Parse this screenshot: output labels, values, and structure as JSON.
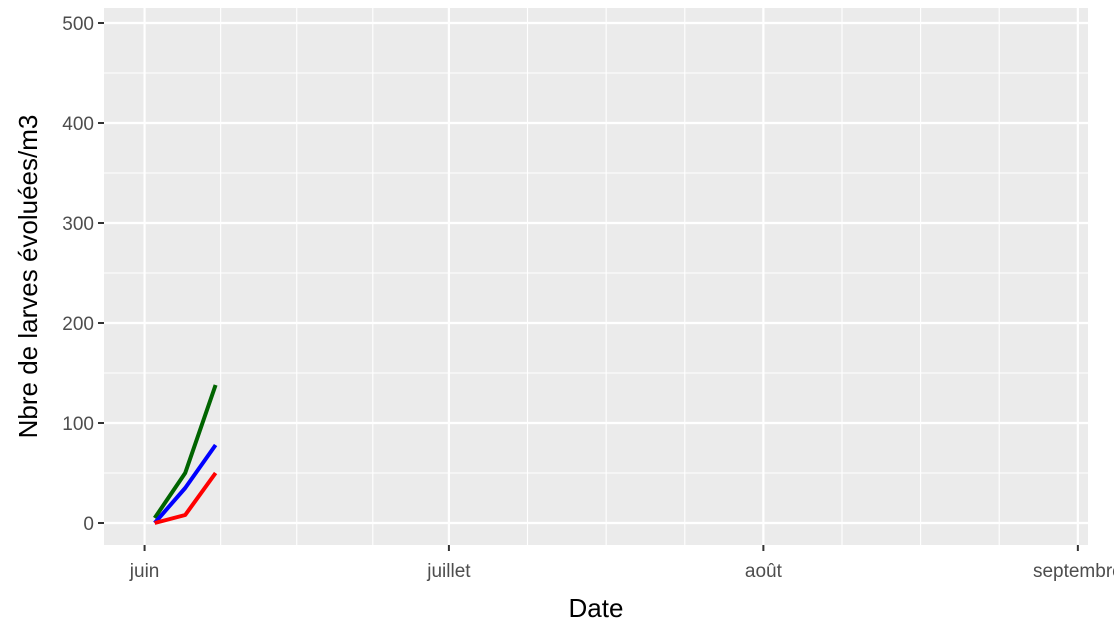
{
  "chart_data": {
    "type": "line",
    "xlabel": "Date",
    "ylabel": "Nbre de larves évoluées/m3",
    "x_axis": {
      "type": "date",
      "range": [
        "2023-05-28",
        "2023-09-02"
      ],
      "ticks": [
        {
          "date": "2023-06-01",
          "label": "juin"
        },
        {
          "date": "2023-07-01",
          "label": "juillet"
        },
        {
          "date": "2023-08-01",
          "label": "août"
        },
        {
          "date": "2023-09-01",
          "label": "septembre"
        }
      ]
    },
    "y_axis": {
      "range": [
        -22,
        515
      ],
      "ticks": [
        0,
        100,
        200,
        300,
        400,
        500
      ]
    },
    "grid": true,
    "legend": "none",
    "series": [
      {
        "color": "#006400",
        "points": [
          {
            "x": "2023-06-02",
            "y": 5
          },
          {
            "x": "2023-06-05",
            "y": 50
          },
          {
            "x": "2023-06-08",
            "y": 138
          }
        ]
      },
      {
        "color": "#0000ff",
        "points": [
          {
            "x": "2023-06-02",
            "y": 0
          },
          {
            "x": "2023-06-05",
            "y": 35
          },
          {
            "x": "2023-06-08",
            "y": 78
          }
        ]
      },
      {
        "color": "#ff0000",
        "points": [
          {
            "x": "2023-06-02",
            "y": 0
          },
          {
            "x": "2023-06-05",
            "y": 8
          },
          {
            "x": "2023-06-08",
            "y": 50
          }
        ]
      }
    ],
    "panel_background": "#ebebeb",
    "grid_color": "#ffffff"
  }
}
